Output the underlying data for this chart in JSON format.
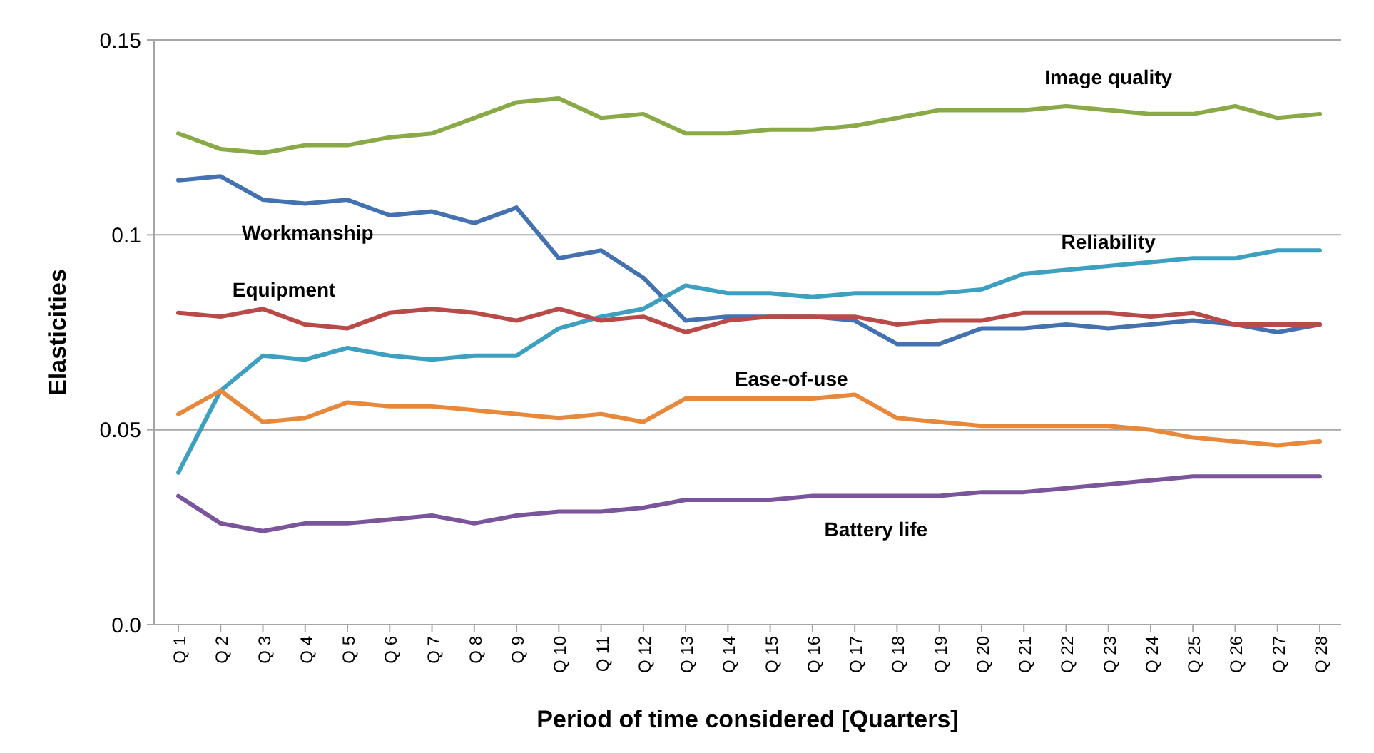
{
  "chart_data": {
    "type": "line",
    "xlabel": "Period of time considered [Quarters]",
    "ylabel": "Elasticities",
    "categories": [
      "Q 1",
      "Q 2",
      "Q 3",
      "Q 4",
      "Q 5",
      "Q 6",
      "Q 7",
      "Q 8",
      "Q 9",
      "Q 10",
      "Q 11",
      "Q 12",
      "Q 13",
      "Q 14",
      "Q 15",
      "Q 16",
      "Q 17",
      "Q 18",
      "Q 19",
      "Q 20",
      "Q 21",
      "Q 22",
      "Q 23",
      "Q 24",
      "Q 25",
      "Q 26",
      "Q 27",
      "Q 28"
    ],
    "ylim": [
      0,
      0.15
    ],
    "yticks": [
      {
        "value": 0,
        "label": "0.0"
      },
      0.05,
      0.1,
      0.15
    ],
    "grid": "y",
    "legend": false,
    "marker": "none",
    "line_style": "solid",
    "series": [
      {
        "name": "Image quality",
        "color": "#8aaa48",
        "values": [
          0.126,
          0.122,
          0.121,
          0.123,
          0.123,
          0.125,
          0.126,
          0.13,
          0.134,
          0.135,
          0.13,
          0.131,
          0.126,
          0.126,
          0.127,
          0.127,
          0.128,
          0.13,
          0.132,
          0.132,
          0.132,
          0.133,
          0.132,
          0.131,
          0.131,
          0.133,
          0.13,
          0.131
        ]
      },
      {
        "name": "Workmanship",
        "color": "#4472b0",
        "values": [
          0.114,
          0.115,
          0.109,
          0.108,
          0.109,
          0.105,
          0.106,
          0.103,
          0.107,
          0.094,
          0.096,
          0.089,
          0.078,
          0.079,
          0.079,
          0.079,
          0.078,
          0.072,
          0.072,
          0.076,
          0.076,
          0.077,
          0.076,
          0.077,
          0.078,
          0.077,
          0.075,
          0.077
        ]
      },
      {
        "name": "Reliability",
        "color": "#3ea0c0",
        "values": [
          0.039,
          0.06,
          0.069,
          0.068,
          0.071,
          0.069,
          0.068,
          0.069,
          0.069,
          0.076,
          0.079,
          0.081,
          0.087,
          0.085,
          0.085,
          0.084,
          0.085,
          0.085,
          0.085,
          0.086,
          0.09,
          0.091,
          0.092,
          0.093,
          0.094,
          0.094,
          0.096,
          0.096
        ]
      },
      {
        "name": "Equipment",
        "color": "#b94a48",
        "values": [
          0.08,
          0.079,
          0.081,
          0.077,
          0.076,
          0.08,
          0.081,
          0.08,
          0.078,
          0.081,
          0.078,
          0.079,
          0.075,
          0.078,
          0.079,
          0.079,
          0.079,
          0.077,
          0.078,
          0.078,
          0.08,
          0.08,
          0.08,
          0.079,
          0.08,
          0.077,
          0.077,
          0.077
        ]
      },
      {
        "name": "Ease-of-use",
        "color": "#e8883a",
        "values": [
          0.054,
          0.06,
          0.052,
          0.053,
          0.057,
          0.056,
          0.056,
          0.055,
          0.054,
          0.053,
          0.054,
          0.052,
          0.058,
          0.058,
          0.058,
          0.058,
          0.059,
          0.053,
          0.052,
          0.051,
          0.051,
          0.051,
          0.051,
          0.05,
          0.048,
          0.047,
          0.046,
          0.047
        ]
      },
      {
        "name": "Battery life",
        "color": "#7b559b",
        "values": [
          0.033,
          0.026,
          0.024,
          0.026,
          0.026,
          0.027,
          0.028,
          0.026,
          0.028,
          0.029,
          0.029,
          0.03,
          0.032,
          0.032,
          0.032,
          0.033,
          0.033,
          0.033,
          0.033,
          0.034,
          0.034,
          0.035,
          0.036,
          0.037,
          0.038,
          0.038,
          0.038,
          0.038
        ]
      }
    ]
  }
}
